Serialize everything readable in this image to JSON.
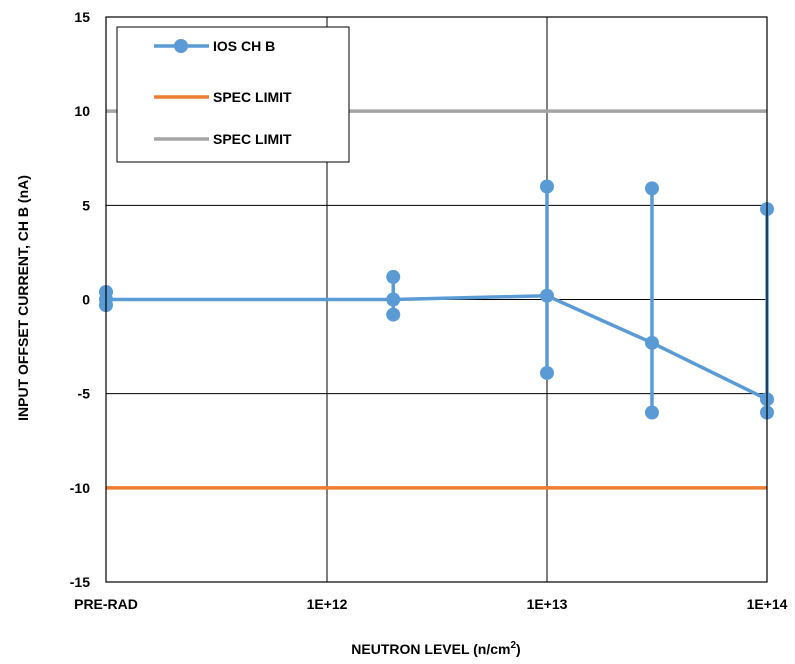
{
  "chart_data": {
    "type": "line",
    "xlabel": "NEUTRON LEVEL (n/cm",
    "xlabel_superscript": "2",
    "xlabel_suffix": ")",
    "ylabel": "INPUT OFFSET CURRENT, CH B (nA)",
    "x_tick_labels": [
      "PRE-RAD",
      "1E+12",
      "1E+13",
      "1E+14"
    ],
    "x_log_decades": [
      0,
      12,
      13,
      14
    ],
    "ylim": [
      -15,
      15
    ],
    "y_ticks": [
      15,
      10,
      5,
      0,
      -5,
      -10,
      -15
    ],
    "grid": true,
    "legend_placement": "top-left",
    "series": [
      {
        "name": "IOS CH B",
        "color": "#5B9BD5",
        "marker": "circle",
        "mean": [
          {
            "x": "PRE-RAD",
            "y": 0.0
          },
          {
            "x": 2000000000000.0,
            "y": 0.0
          },
          {
            "x": 10000000000000.0,
            "y": 0.2
          },
          {
            "x": 30000000000000.0,
            "y": -2.3
          },
          {
            "x": 100000000000000.0,
            "y": -5.3
          }
        ],
        "ranges": [
          {
            "x": "PRE-RAD",
            "max": 0.4,
            "min": -0.3
          },
          {
            "x": 2000000000000.0,
            "max": 1.2,
            "min": -0.8
          },
          {
            "x": 10000000000000.0,
            "max": 6.0,
            "min": -3.9
          },
          {
            "x": 30000000000000.0,
            "max": 5.9,
            "min": -6.0
          },
          {
            "x": 100000000000000.0,
            "max": 4.8,
            "min": -6.0
          }
        ]
      },
      {
        "name": "SPEC LIMIT",
        "color": "#ED7D31",
        "y": -10
      },
      {
        "name": "SPEC LIMIT",
        "color": "#A5A5A5",
        "y": 10
      }
    ]
  }
}
